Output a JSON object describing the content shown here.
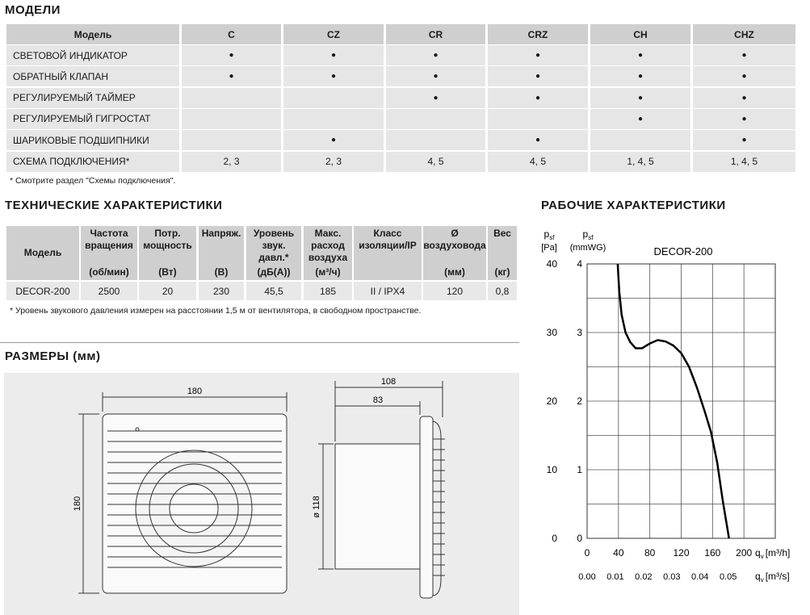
{
  "models": {
    "title": "МОДЕЛИ",
    "header": [
      "Модель",
      "C",
      "CZ",
      "CR",
      "CRZ",
      "CH",
      "CHZ"
    ],
    "rows": [
      [
        "СВЕТОВОЙ ИНДИКАТОР",
        "●",
        "●",
        "●",
        "●",
        "●",
        "●"
      ],
      [
        "ОБРАТНЫЙ КЛАПАН",
        "●",
        "●",
        "●",
        "●",
        "●",
        "●"
      ],
      [
        "РЕГУЛИРУЕМЫЙ ТАЙМЕР",
        null,
        null,
        "●",
        "●",
        "●",
        "●"
      ],
      [
        "РЕГУЛИРУЕМЫЙ ГИГРОСТАТ",
        null,
        null,
        null,
        null,
        "●",
        "●"
      ],
      [
        "ШАРИКОВЫЕ ПОДШИПНИКИ",
        null,
        "●",
        null,
        "●",
        null,
        "●"
      ],
      [
        "СХЕМА ПОДКЛЮЧЕНИЯ*",
        "2, 3",
        "2, 3",
        "4, 5",
        "4, 5",
        "1, 4, 5",
        "1, 4, 5"
      ]
    ],
    "footnote": "* Смотрите раздел \"Схемы подключения\"."
  },
  "tech": {
    "title": "ТЕХНИЧЕСКИЕ ХАРАКТЕРИСТИКИ",
    "header": [
      {
        "lines": [
          "Модель"
        ]
      },
      {
        "lines": [
          "Частота",
          "вращения"
        ],
        "unit": "(об/мин)"
      },
      {
        "lines": [
          "Потр.",
          "мощность"
        ],
        "unit": "(Вт)"
      },
      {
        "lines": [
          "Напряж."
        ],
        "unit": "(В)"
      },
      {
        "lines": [
          "Уровень",
          "звук.",
          "давл.*"
        ],
        "unit": "(дБ(А))"
      },
      {
        "lines": [
          "Макс.",
          "расход",
          "воздуха"
        ],
        "unit": "(м³/ч)"
      },
      {
        "lines": [
          "Класс",
          "изоляции/IP"
        ]
      },
      {
        "lines": [
          "Ø",
          "воздуховода"
        ],
        "unit": "(мм)"
      },
      {
        "lines": [
          "Вес"
        ],
        "unit": "(кг)"
      }
    ],
    "row": [
      "DECOR-200",
      "2500",
      "20",
      "230",
      "45,5",
      "185",
      "II / IPX4",
      "120",
      "0,8"
    ],
    "footnote": "* Уровень звукового давления измерен на расстоянии 1,5 м от вентилятора, в свободном пространстве."
  },
  "dimensions": {
    "title": "РАЗМЕРЫ (мм)",
    "width": "180",
    "height": "180",
    "depth": "108",
    "body_depth": "83",
    "diameter": "ø 118"
  },
  "chart_data": {
    "type": "line",
    "title": "РАБОЧИЕ ХАРАКТЕРИСТИКИ",
    "ylabel": {
      "symbol": "p",
      "sub": "sf",
      "unit": "[Pa]"
    },
    "y2label": {
      "symbol": "p",
      "sub": "sf",
      "unit": "(mmWG)"
    },
    "xlabel": {
      "symbol": "q",
      "sub": "v",
      "unit": "[m³/h]"
    },
    "x2label": {
      "symbol": "q",
      "sub": "v",
      "unit": "[m³/s]"
    },
    "x": [
      39,
      41,
      44,
      49,
      55,
      62,
      70,
      80,
      90,
      100,
      110,
      120,
      130,
      140,
      150,
      158,
      166,
      173,
      181
    ],
    "series": [
      {
        "name": "DECOR-200",
        "color": "#000000",
        "values": [
          40,
          36,
          32.6,
          30,
          28.6,
          27.7,
          27.7,
          28.4,
          28.9,
          28.7,
          28.1,
          27,
          25,
          22,
          18.5,
          15.5,
          11,
          5.5,
          0
        ]
      }
    ],
    "xlim": [
      0,
      240
    ],
    "xticks": [
      0,
      40,
      80,
      120,
      160,
      200
    ],
    "x2lim": [
      0,
      0.0667
    ],
    "x2ticks": [
      {
        "value": 0,
        "label": "0.00"
      },
      0.01,
      0.02,
      0.03,
      0.04,
      0.05
    ],
    "ylim": [
      0,
      40
    ],
    "yticks": [
      0,
      10,
      20,
      30,
      40
    ],
    "y2lim": [
      0,
      4
    ],
    "y2ticks": [
      0,
      1,
      2,
      3,
      4
    ],
    "ygrid": [
      0,
      5,
      10,
      15,
      20,
      25,
      30,
      35,
      40
    ],
    "grid": true
  }
}
